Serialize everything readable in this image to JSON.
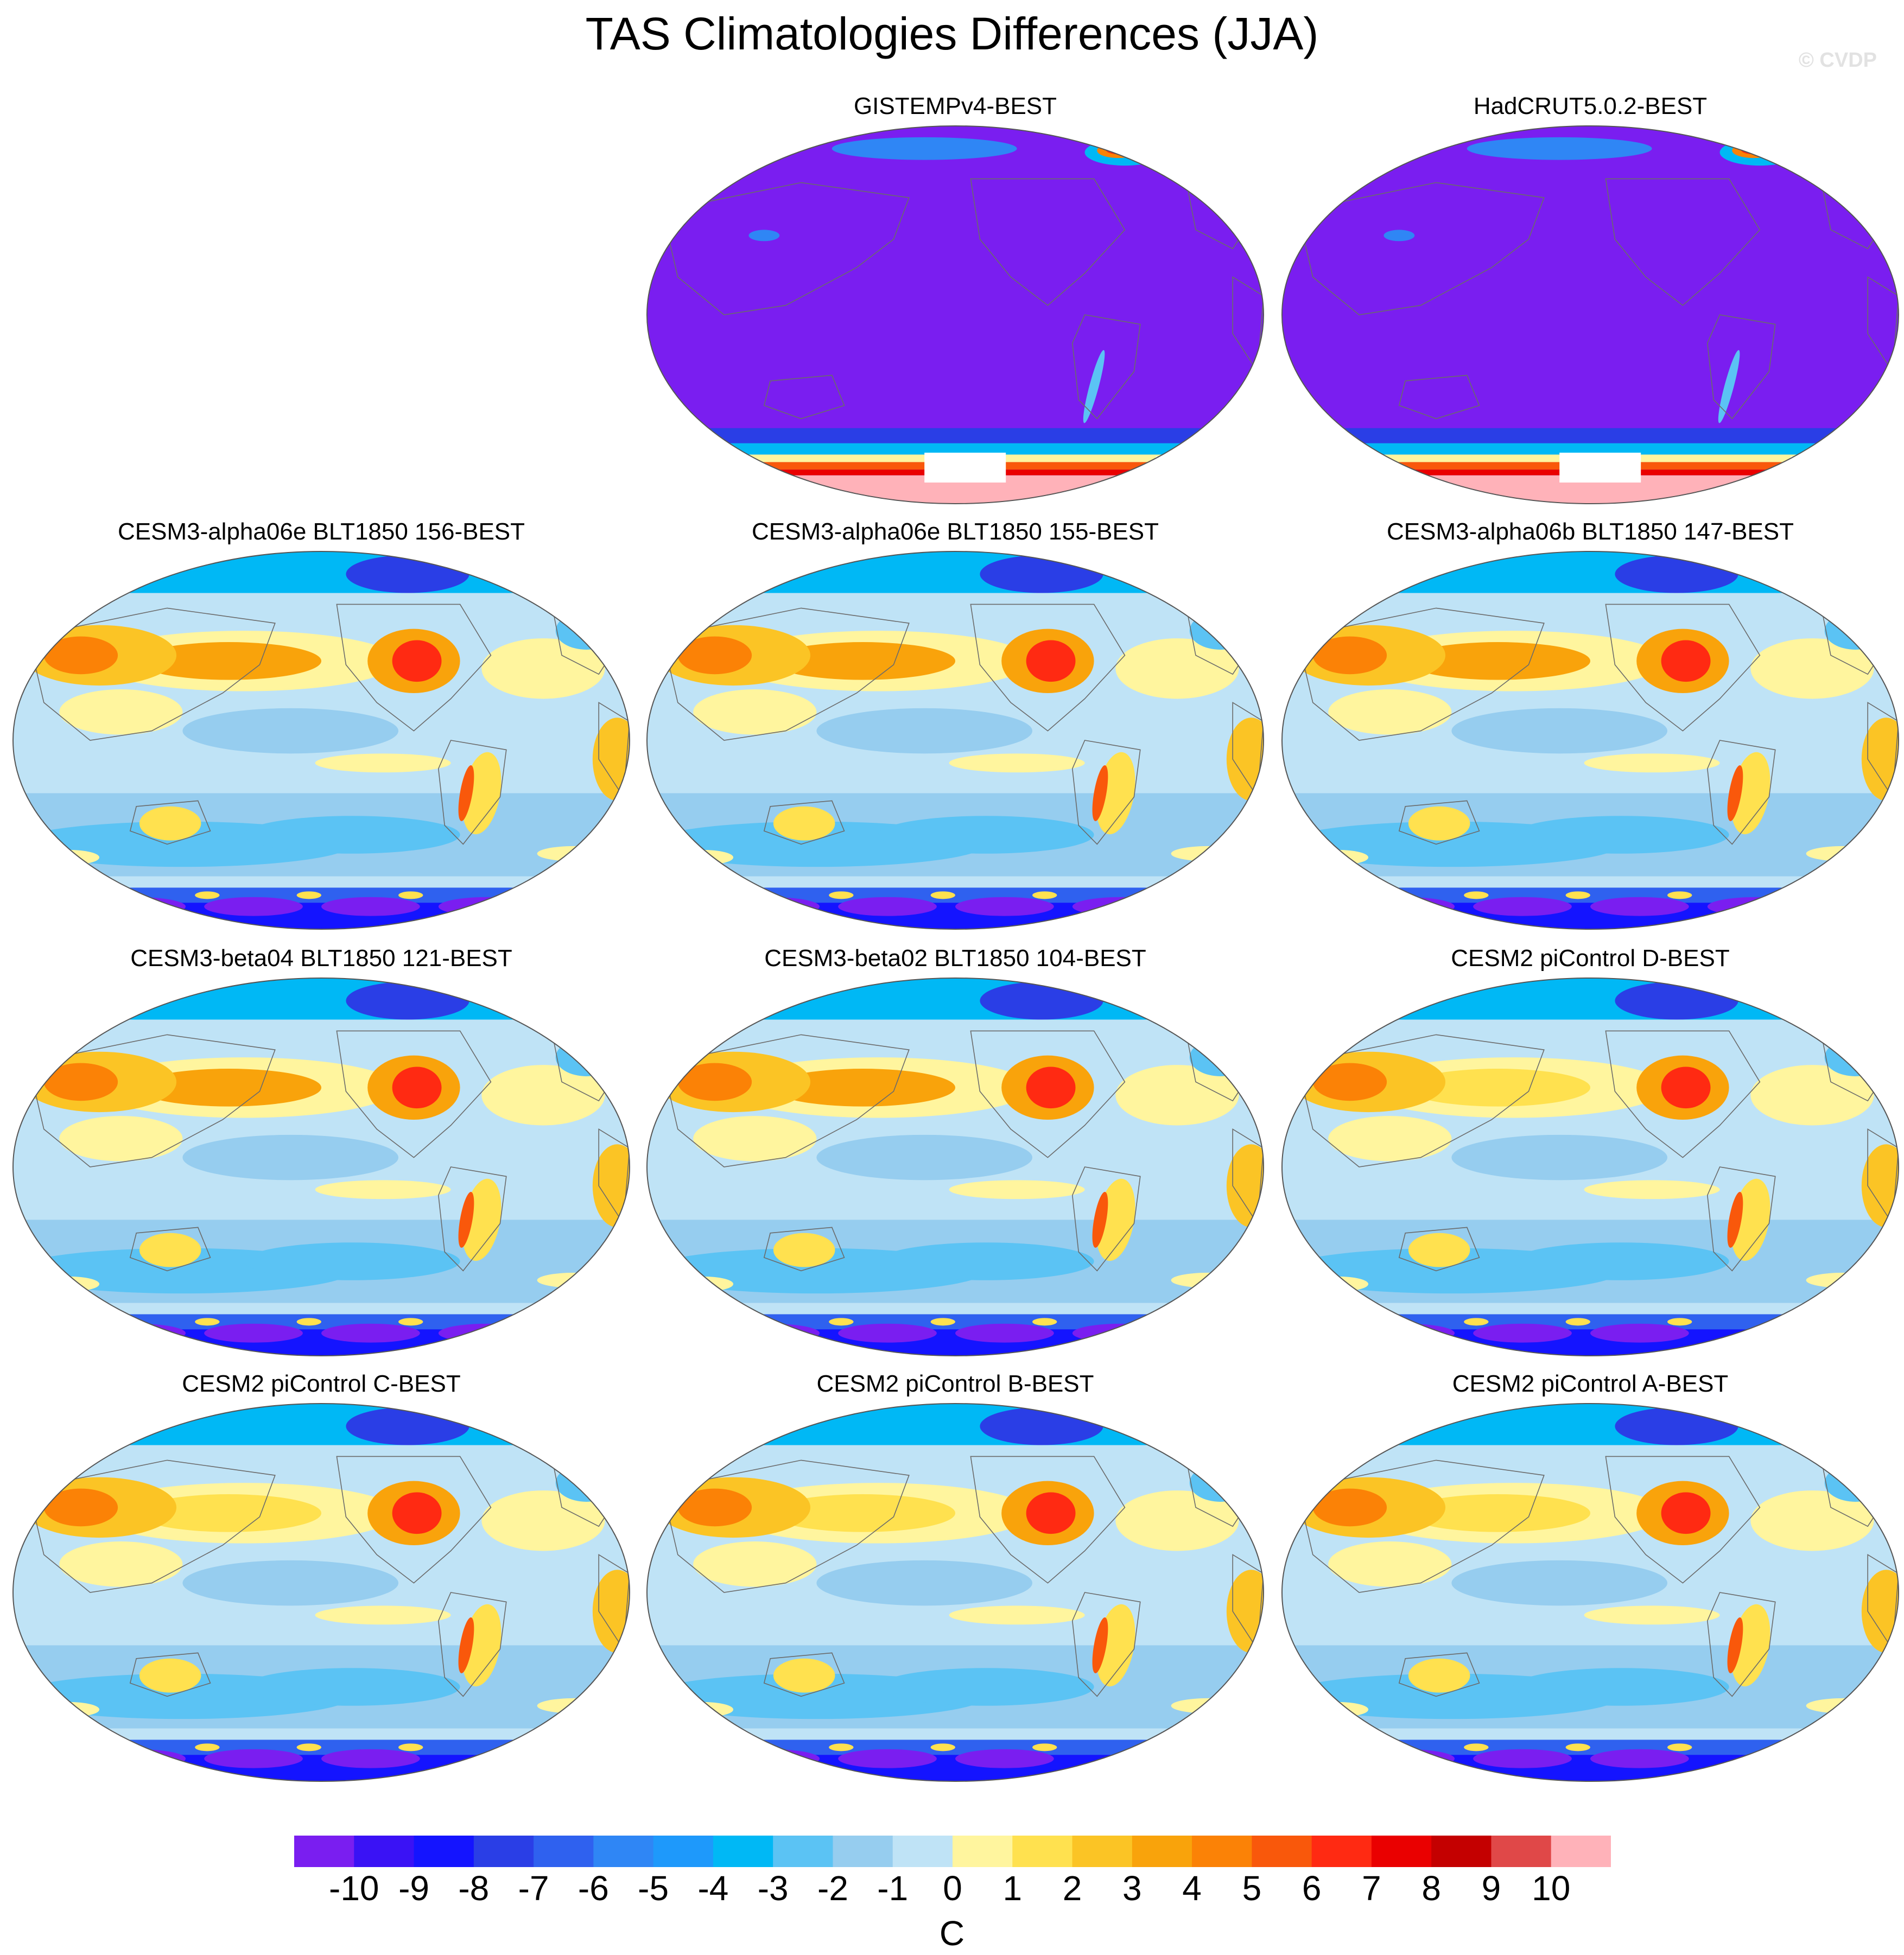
{
  "title": "TAS Climatologies Differences (JJA)",
  "watermark": "© CVDP",
  "chart_data": {
    "type": "heatmap",
    "projection": "Robinson-like global maps",
    "season": "JJA",
    "variable": "TAS",
    "colorbar": {
      "unit": "C",
      "tick_labels": [
        "-10",
        "-9",
        "-8",
        "-7",
        "-6",
        "-5",
        "-4",
        "-3",
        "-2",
        "-1",
        "0",
        "1",
        "2",
        "3",
        "4",
        "5",
        "6",
        "7",
        "8",
        "9",
        "10"
      ],
      "levels": [
        -10,
        -9,
        -8,
        -7,
        -6,
        -5,
        -4,
        -3,
        -2,
        -1,
        0,
        1,
        2,
        3,
        4,
        5,
        6,
        7,
        8,
        9,
        10
      ],
      "colors": [
        "#7a1ef0",
        "#3a12f5",
        "#1414ff",
        "#2a3ee6",
        "#2f61ef",
        "#2f86f5",
        "#1e99fb",
        "#00b8f5",
        "#5bc3f4",
        "#96cdef",
        "#bfe3f6",
        "#fff59e",
        "#ffe14f",
        "#fbc425",
        "#f9a30b",
        "#fb8206",
        "#f9580b",
        "#ff2a12",
        "#ea0000",
        "#c40000",
        "#e04848",
        "#ffb2b9"
      ],
      "range": [
        -10,
        10
      ]
    },
    "panels": [
      {
        "title": "GISTEMPv4-BEST",
        "row": 0,
        "col": 1,
        "style": "obs"
      },
      {
        "title": "HadCRUT5.0.2-BEST",
        "row": 0,
        "col": 2,
        "style": "obs"
      },
      {
        "title": "CESM3-alpha06e BLT1850 156-BEST",
        "row": 1,
        "col": 0,
        "style": "model"
      },
      {
        "title": "CESM3-alpha06e BLT1850 155-BEST",
        "row": 1,
        "col": 1,
        "style": "model"
      },
      {
        "title": "CESM3-alpha06b BLT1850 147-BEST",
        "row": 1,
        "col": 2,
        "style": "model"
      },
      {
        "title": "CESM3-beta04 BLT1850 121-BEST",
        "row": 2,
        "col": 0,
        "style": "model"
      },
      {
        "title": "CESM3-beta02 BLT1850 104-BEST",
        "row": 2,
        "col": 1,
        "style": "model"
      },
      {
        "title": "CESM2 piControl D-BEST",
        "row": 2,
        "col": 2,
        "style": "model"
      },
      {
        "title": "CESM2 piControl C-BEST",
        "row": 3,
        "col": 0,
        "style": "model"
      },
      {
        "title": "CESM2 piControl B-BEST",
        "row": 3,
        "col": 1,
        "style": "model"
      },
      {
        "title": "CESM2 piControl A-BEST",
        "row": 3,
        "col": 2,
        "style": "model"
      }
    ]
  }
}
